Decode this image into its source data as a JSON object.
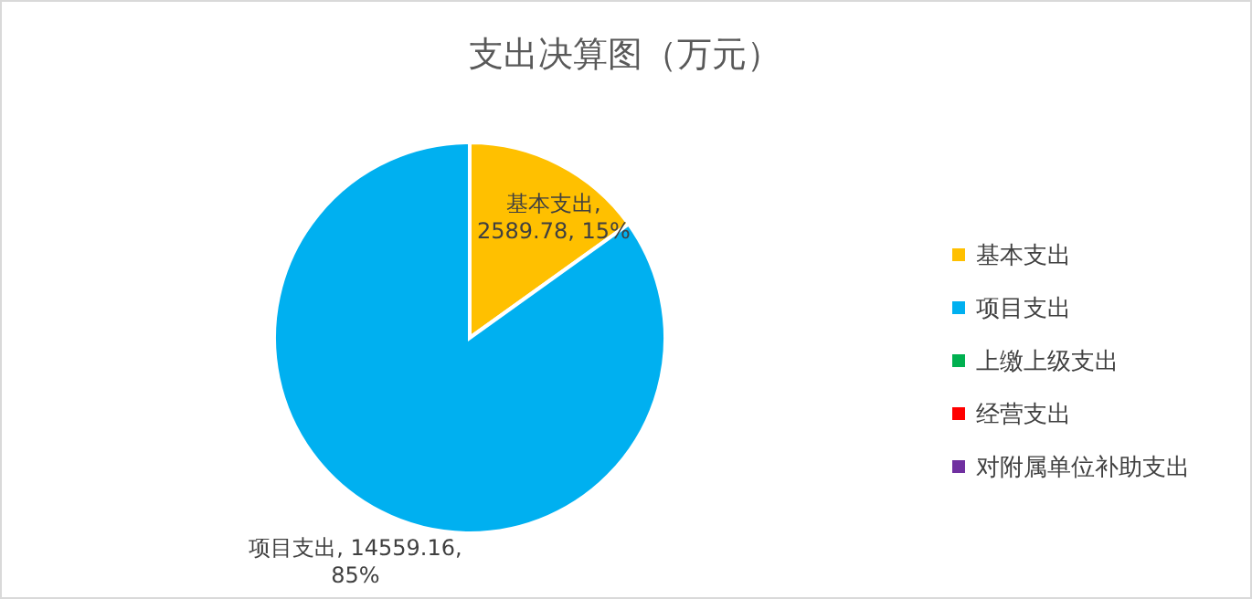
{
  "chart_data": {
    "type": "pie",
    "title": "支出决算图（万元）",
    "categories": [
      "基本支出",
      "项目支出",
      "上缴上级支出",
      "经营支出",
      "对附属单位补助支出"
    ],
    "values": [
      2589.78,
      14559.16,
      0,
      0,
      0
    ],
    "colors": [
      "#ffc000",
      "#00b0f0",
      "#00b050",
      "#ff0000",
      "#7030a0"
    ],
    "value_labels": [
      "基本支出, 2589.78, 15%",
      "项目支出, 14559.16, 85%",
      null,
      null,
      null
    ],
    "legend": "right"
  }
}
